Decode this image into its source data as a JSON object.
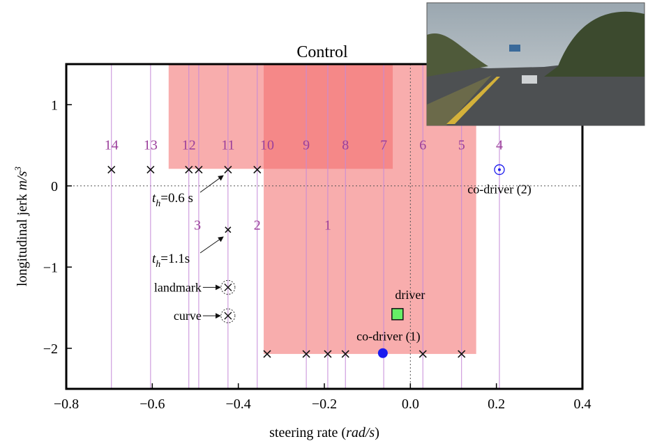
{
  "chart_data": {
    "type": "scatter",
    "title": "Control",
    "xlabel": {
      "text": "steering rate (",
      "unit": "rad/s",
      "close": ")"
    },
    "ylabel": {
      "text": "longitudinal jerk ",
      "unit": "m/s",
      "exp": "3"
    },
    "xlim": [
      -0.8,
      0.4
    ],
    "ylim": [
      -2.5,
      1.5
    ],
    "xticks": [
      {
        "value": -0.8,
        "label": "−0.8"
      },
      {
        "value": -0.6,
        "label": "−0.6"
      },
      {
        "value": -0.4,
        "label": "−0.4"
      },
      {
        "value": -0.2,
        "label": "−0.2"
      },
      {
        "value": 0,
        "label": "0.0"
      },
      0.2,
      0.4
    ],
    "yticks": [
      {
        "value": -2,
        "label": "−2"
      },
      {
        "value": -1,
        "label": "−1"
      },
      0,
      1
    ],
    "zero_lines": true,
    "regions": [
      {
        "xlim": [
          -0.562,
          -0.041
        ],
        "ylim": [
          0.21,
          1.5
        ],
        "color": "#f26a6a"
      },
      {
        "xlim": [
          -0.341,
          0.153
        ],
        "ylim": [
          -2.07,
          1.5
        ],
        "color": "#f26a6a"
      }
    ],
    "guide_lines": {
      "color": "#c58ad8",
      "x": [
        -0.695,
        -0.604,
        -0.515,
        -0.492,
        -0.424,
        -0.356,
        -0.242,
        -0.192,
        -0.151,
        -0.062,
        0.029,
        0.119,
        0.207
      ]
    },
    "numbers": {
      "color": "#9b3f9b",
      "labels": [
        "14",
        "13",
        "12",
        "11",
        "10",
        "9",
        "8",
        "7",
        "6",
        "5",
        "4",
        "3",
        "2",
        "1"
      ],
      "x": [
        -0.695,
        -0.604,
        -0.515,
        -0.424,
        -0.333,
        -0.242,
        -0.151,
        -0.062,
        0.029,
        0.119,
        0.207,
        -0.495,
        -0.356,
        -0.192
      ],
      "y": [
        0.51,
        0.51,
        0.51,
        0.51,
        0.51,
        0.51,
        0.51,
        0.51,
        0.51,
        0.51,
        0.51,
        -0.48,
        -0.48,
        -0.48
      ]
    },
    "crosses": {
      "color": "#111111",
      "x": [
        -0.695,
        -0.604,
        -0.515,
        -0.492,
        -0.424,
        -0.356,
        -0.333,
        -0.242,
        -0.192,
        -0.151,
        0.029,
        0.119,
        -0.424
      ],
      "y": [
        0.2,
        0.2,
        0.2,
        0.2,
        0.2,
        0.2,
        -2.07,
        -2.07,
        -2.07,
        -2.07,
        -2.07,
        -2.07,
        -0.54
      ]
    },
    "points": [
      {
        "label": "landmark",
        "marker": "circle-x",
        "color": "#333333",
        "x": -0.424,
        "y": -1.25
      },
      {
        "label": "curve",
        "marker": "circle-x",
        "color": "#333333",
        "x": -0.424,
        "y": -1.6
      },
      {
        "label": "driver",
        "marker": "square",
        "color": "#66ee66",
        "x": -0.03,
        "y": -1.58
      },
      {
        "label": "co-driver (1)",
        "marker": "dot",
        "color": "#1a1aee",
        "x": -0.064,
        "y": -2.06
      },
      {
        "label": "co-driver (2)",
        "marker": "ring",
        "color": "#1a1aee",
        "x": 0.207,
        "y": 0.2
      }
    ],
    "annotations": [
      {
        "t": "t",
        "sub": "h",
        "text": "=0.6 s"
      },
      {
        "t": "t",
        "sub": "h",
        "text": "=1.1s"
      }
    ]
  }
}
